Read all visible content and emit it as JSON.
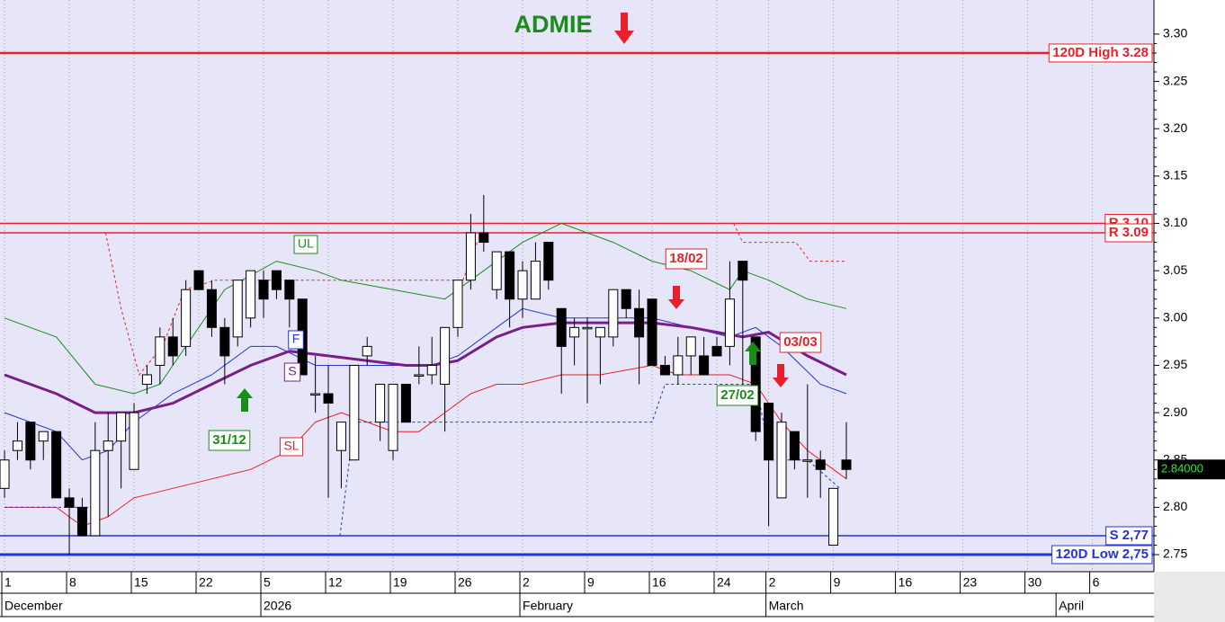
{
  "chart_data": {
    "type": "candlestick",
    "title": "ADMIE",
    "title_color": "#1a8c1a",
    "background": "#e6e6f8",
    "xlim": [
      -0.35,
      88.75
    ],
    "ylim": [
      2.732,
      3.336
    ],
    "yticks": [
      {
        "value": 2.75,
        "label": "2.75"
      },
      {
        "value": 2.8,
        "label": "2.80"
      },
      {
        "value": 2.85,
        "label": "2.85"
      },
      {
        "value": 2.9,
        "label": "2.90"
      },
      {
        "value": 2.95,
        "label": "2.95"
      },
      {
        "value": 3.0,
        "label": "3.00"
      },
      {
        "value": 3.05,
        "label": "3.05"
      },
      {
        "value": 3.1,
        "label": "3.10"
      },
      {
        "value": 3.15,
        "label": "3.15"
      },
      {
        "value": 3.2,
        "label": "3.20"
      },
      {
        "value": 3.25,
        "label": "3.25"
      },
      {
        "value": 3.3,
        "label": "3.30"
      }
    ],
    "xticks": [
      {
        "value": 0,
        "label": "1"
      },
      {
        "value": 5,
        "label": "8"
      },
      {
        "value": 10,
        "label": "15"
      },
      {
        "value": 15,
        "label": "22"
      },
      {
        "value": 20,
        "label": "5"
      },
      {
        "value": 25,
        "label": "12"
      },
      {
        "value": 30,
        "label": "19"
      },
      {
        "value": 35,
        "label": "26"
      },
      {
        "value": 40,
        "label": "2"
      },
      {
        "value": 45,
        "label": "9"
      },
      {
        "value": 50,
        "label": "16"
      },
      {
        "value": 55,
        "label": "24"
      },
      {
        "value": 59,
        "label": "2"
      },
      {
        "value": 64,
        "label": "9"
      },
      {
        "value": 69,
        "label": "16"
      },
      {
        "value": 74,
        "label": "23"
      },
      {
        "value": 79,
        "label": "30"
      },
      {
        "value": 84,
        "label": "6"
      }
    ],
    "month_ticks": [
      {
        "value": 0,
        "label": "December"
      },
      {
        "value": 20,
        "label": "2026"
      },
      {
        "value": 40,
        "label": "February"
      },
      {
        "value": 59,
        "label": "March"
      },
      {
        "value": 81.4,
        "label": "April"
      }
    ],
    "grid": true,
    "candles": {
      "x": [
        0,
        1,
        2,
        3,
        4,
        5,
        6,
        7,
        8,
        9,
        10,
        11,
        12,
        13,
        14,
        15,
        16,
        17,
        18,
        19,
        20,
        21,
        22,
        23,
        24,
        25,
        26,
        27,
        28,
        29,
        30,
        31,
        32,
        33,
        34,
        35,
        36,
        37,
        38,
        39,
        40,
        41,
        42,
        43,
        44,
        45,
        46,
        47,
        48,
        49,
        50,
        51,
        52,
        53,
        54,
        55,
        56,
        57,
        58,
        59,
        60,
        61,
        62,
        63,
        64,
        65
      ],
      "open": [
        2.82,
        2.86,
        2.89,
        2.87,
        2.88,
        2.81,
        2.8,
        2.77,
        2.86,
        2.87,
        2.84,
        2.93,
        2.95,
        2.98,
        2.97,
        3.05,
        3.03,
        2.99,
        2.98,
        3.0,
        3.04,
        3.05,
        3.04,
        3.02,
        2.92,
        2.92,
        2.86,
        2.85,
        2.96,
        2.89,
        2.86,
        2.93,
        2.94,
        2.94,
        2.93,
        2.99,
        3.04,
        3.09,
        3.03,
        3.07,
        3.02,
        3.02,
        3.08,
        3.01,
        2.98,
        2.99,
        2.98,
        2.98,
        3.03,
        3.01,
        3.02,
        2.95,
        2.94,
        2.96,
        2.96,
        2.97,
        2.97,
        3.06,
        2.98,
        2.91,
        2.81,
        2.88,
        2.85,
        2.85,
        2.76,
        2.85
      ],
      "high": [
        2.86,
        2.89,
        2.89,
        2.88,
        2.88,
        2.82,
        2.81,
        2.89,
        2.9,
        2.9,
        2.91,
        2.95,
        2.99,
        3.0,
        3.04,
        3.05,
        3.04,
        3.0,
        3.04,
        3.05,
        3.05,
        3.05,
        3.04,
        3.02,
        2.96,
        2.95,
        2.89,
        2.94,
        2.98,
        2.92,
        2.93,
        2.93,
        2.97,
        2.98,
        2.99,
        3.04,
        3.11,
        3.13,
        3.07,
        3.07,
        3.06,
        3.08,
        3.08,
        3.01,
        3.0,
        3.0,
        2.99,
        3.03,
        3.03,
        3.03,
        3.02,
        2.96,
        2.98,
        2.98,
        2.98,
        2.98,
        3.06,
        3.06,
        2.98,
        2.91,
        2.9,
        2.88,
        2.93,
        2.86,
        2.82,
        2.89
      ],
      "low": [
        2.81,
        2.85,
        2.84,
        2.85,
        2.81,
        2.75,
        2.77,
        2.77,
        2.79,
        2.82,
        2.84,
        2.92,
        2.93,
        2.95,
        2.96,
        3.03,
        2.98,
        2.93,
        2.97,
        2.99,
        3.0,
        3.02,
        2.99,
        2.94,
        2.9,
        2.81,
        2.82,
        2.85,
        2.95,
        2.87,
        2.85,
        2.89,
        2.93,
        2.93,
        2.88,
        2.98,
        3.03,
        3.07,
        3.02,
        2.99,
        3.0,
        3.02,
        3.03,
        2.92,
        2.95,
        2.91,
        2.93,
        2.97,
        3.0,
        2.93,
        2.95,
        2.94,
        2.93,
        2.94,
        2.94,
        2.96,
        2.95,
        2.93,
        2.87,
        2.78,
        2.81,
        2.84,
        2.81,
        2.81,
        2.76,
        2.83
      ],
      "close": [
        2.85,
        2.87,
        2.85,
        2.88,
        2.81,
        2.8,
        2.77,
        2.86,
        2.87,
        2.9,
        2.9,
        2.94,
        2.98,
        2.96,
        3.03,
        3.03,
        2.99,
        2.96,
        3.04,
        3.05,
        3.02,
        3.03,
        3.02,
        2.94,
        2.92,
        2.91,
        2.89,
        2.95,
        2.97,
        2.93,
        2.93,
        2.89,
        2.94,
        2.95,
        2.99,
        3.04,
        3.09,
        3.08,
        3.07,
        3.02,
        3.05,
        3.06,
        3.04,
        2.97,
        2.99,
        2.99,
        2.99,
        3.03,
        3.01,
        2.98,
        2.95,
        2.94,
        2.96,
        2.98,
        2.94,
        2.96,
        3.02,
        3.04,
        2.88,
        2.85,
        2.89,
        2.85,
        2.85,
        2.84,
        2.82,
        2.84
      ]
    },
    "lines": [
      {
        "name": "UL",
        "color": "#1a8c1a",
        "width": 1,
        "x": [
          0,
          4,
          7,
          10,
          12,
          14,
          17,
          21,
          24,
          26,
          30,
          34,
          36,
          40,
          43,
          47,
          50,
          53,
          56,
          57,
          59,
          62,
          65
        ],
        "values": [
          3.0,
          2.98,
          2.93,
          2.92,
          2.93,
          2.97,
          3.03,
          3.06,
          3.05,
          3.04,
          3.03,
          3.02,
          3.04,
          3.08,
          3.1,
          3.08,
          3.06,
          3.05,
          3.03,
          3.05,
          3.04,
          3.02,
          3.01
        ]
      },
      {
        "name": "F",
        "color": "#2233dd",
        "width": 1,
        "x": [
          0,
          4,
          6,
          8,
          10,
          13,
          16,
          19,
          21,
          24,
          27,
          30,
          33,
          35,
          38,
          40,
          43,
          47,
          50,
          53,
          56,
          58,
          60,
          63,
          65
        ],
        "values": [
          2.9,
          2.88,
          2.85,
          2.86,
          2.89,
          2.92,
          2.94,
          2.97,
          2.97,
          2.95,
          2.95,
          2.95,
          2.95,
          2.96,
          2.99,
          3.01,
          3.0,
          3.0,
          3.0,
          2.99,
          2.98,
          2.99,
          2.97,
          2.93,
          2.92
        ]
      },
      {
        "name": "S",
        "color": "#7a1f8a",
        "width": 3,
        "x": [
          0,
          4,
          7,
          10,
          13,
          16,
          19,
          22,
          25,
          28,
          31,
          33,
          35,
          38,
          40,
          43,
          47,
          50,
          53,
          55,
          57,
          59,
          62,
          65
        ],
        "values": [
          2.94,
          2.92,
          2.9,
          2.9,
          2.91,
          2.93,
          2.95,
          2.965,
          2.96,
          2.955,
          2.95,
          2.95,
          2.955,
          2.98,
          2.99,
          2.995,
          2.995,
          2.995,
          2.99,
          2.985,
          2.98,
          2.985,
          2.96,
          2.94
        ]
      },
      {
        "name": "SL",
        "color": "#e8202a",
        "width": 1,
        "x": [
          0,
          4,
          6,
          8,
          10,
          13,
          16,
          19,
          22,
          24,
          26,
          28,
          30,
          32,
          34,
          36,
          38,
          40,
          43,
          46,
          50,
          52,
          54,
          56,
          58,
          60,
          62,
          65
        ],
        "values": [
          2.8,
          2.8,
          2.78,
          2.79,
          2.81,
          2.82,
          2.83,
          2.84,
          2.86,
          2.89,
          2.9,
          2.89,
          2.88,
          2.88,
          2.9,
          2.92,
          2.93,
          2.93,
          2.94,
          2.94,
          2.95,
          2.94,
          2.94,
          2.94,
          2.93,
          2.89,
          2.86,
          2.83
        ]
      },
      {
        "color": "#e8202a",
        "width": 1,
        "dashed": true,
        "x": [
          7.8,
          9,
          10.4,
          12.2,
          13.9,
          16.3,
          35.4,
          36.5,
          46,
          56.3,
          57,
          61.1,
          62.2,
          65
        ],
        "values": [
          3.09,
          3.01,
          2.94,
          2.97,
          3.03,
          3.04,
          3.04,
          3.08,
          null,
          3.1,
          3.08,
          3.08,
          3.06,
          3.06
        ]
      },
      {
        "color": "#2233dd",
        "width": 1,
        "dashed": true,
        "x": [
          0,
          6.6,
          15,
          25.9,
          27,
          50,
          51,
          58,
          59.2,
          62,
          64.5
        ],
        "values": [
          2.8,
          2.8,
          null,
          2.77,
          2.89,
          2.89,
          2.93,
          2.93,
          2.85,
          2.85,
          2.82
        ]
      }
    ],
    "levels": [
      {
        "value": 3.28,
        "label": "120D High 3.28",
        "color": "#e8202a",
        "width": 2.5
      },
      {
        "value": 3.1,
        "label": "R 3.10",
        "color": "#e8202a",
        "width": 1.5
      },
      {
        "value": 3.09,
        "label": "R 3.09",
        "color": "#e8202a",
        "width": 1.5
      },
      {
        "value": 2.77,
        "label": "S 2,77",
        "color": "#2233dd",
        "width": 1.5
      },
      {
        "value": 2.75,
        "label": "120D Low 2,75",
        "color": "#2233dd",
        "width": 3
      }
    ],
    "signals": [
      {
        "label": "31/12",
        "color": "#1a8c1a"
      },
      {
        "label": "18/02",
        "color": "#e8202a"
      },
      {
        "label": "03/03",
        "color": "#e8202a"
      },
      {
        "label": "27/02",
        "color": "#1a8c1a"
      }
    ],
    "last_price": {
      "value": 2.84,
      "label": "2.84000"
    }
  }
}
